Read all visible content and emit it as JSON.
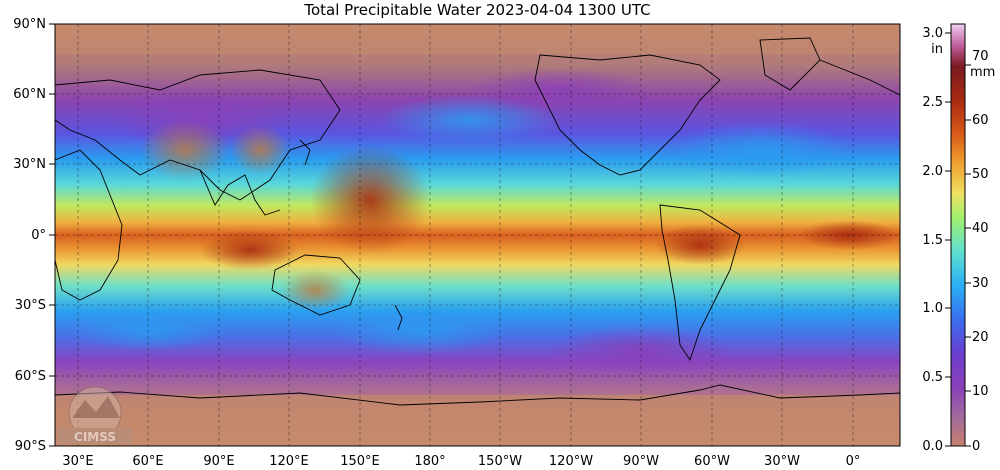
{
  "title": "Total Precipitable Water  2023-04-04 1300 UTC",
  "lat_labels": [
    "90°N",
    "60°N",
    "30°N",
    "0°",
    "30°S",
    "60°S",
    "90°S"
  ],
  "lon_labels": [
    "30°E",
    "60°E",
    "90°E",
    "120°E",
    "150°E",
    "180°",
    "150°W",
    "120°W",
    "90°W",
    "60°W",
    "30°W",
    "0°"
  ],
  "colorbar": {
    "unit_in": "in",
    "unit_mm": "mm",
    "in_ticks": [
      "0.0",
      "0.5",
      "1.0",
      "1.5",
      "2.0",
      "2.5",
      "3.0"
    ],
    "mm_ticks": [
      "0",
      "10",
      "20",
      "30",
      "40",
      "50",
      "60",
      "70"
    ],
    "colors": [
      "#c8806a",
      "#a06aa0",
      "#8a3fb8",
      "#6a3fd0",
      "#3a6ff0",
      "#2aaff5",
      "#5fe0d0",
      "#a0f070",
      "#f0e060",
      "#f0a030",
      "#d85a18",
      "#a82a10",
      "#7a1a20",
      "#c060a0",
      "#f0d0f0"
    ]
  },
  "logo": {
    "text": "CIMSS"
  }
}
